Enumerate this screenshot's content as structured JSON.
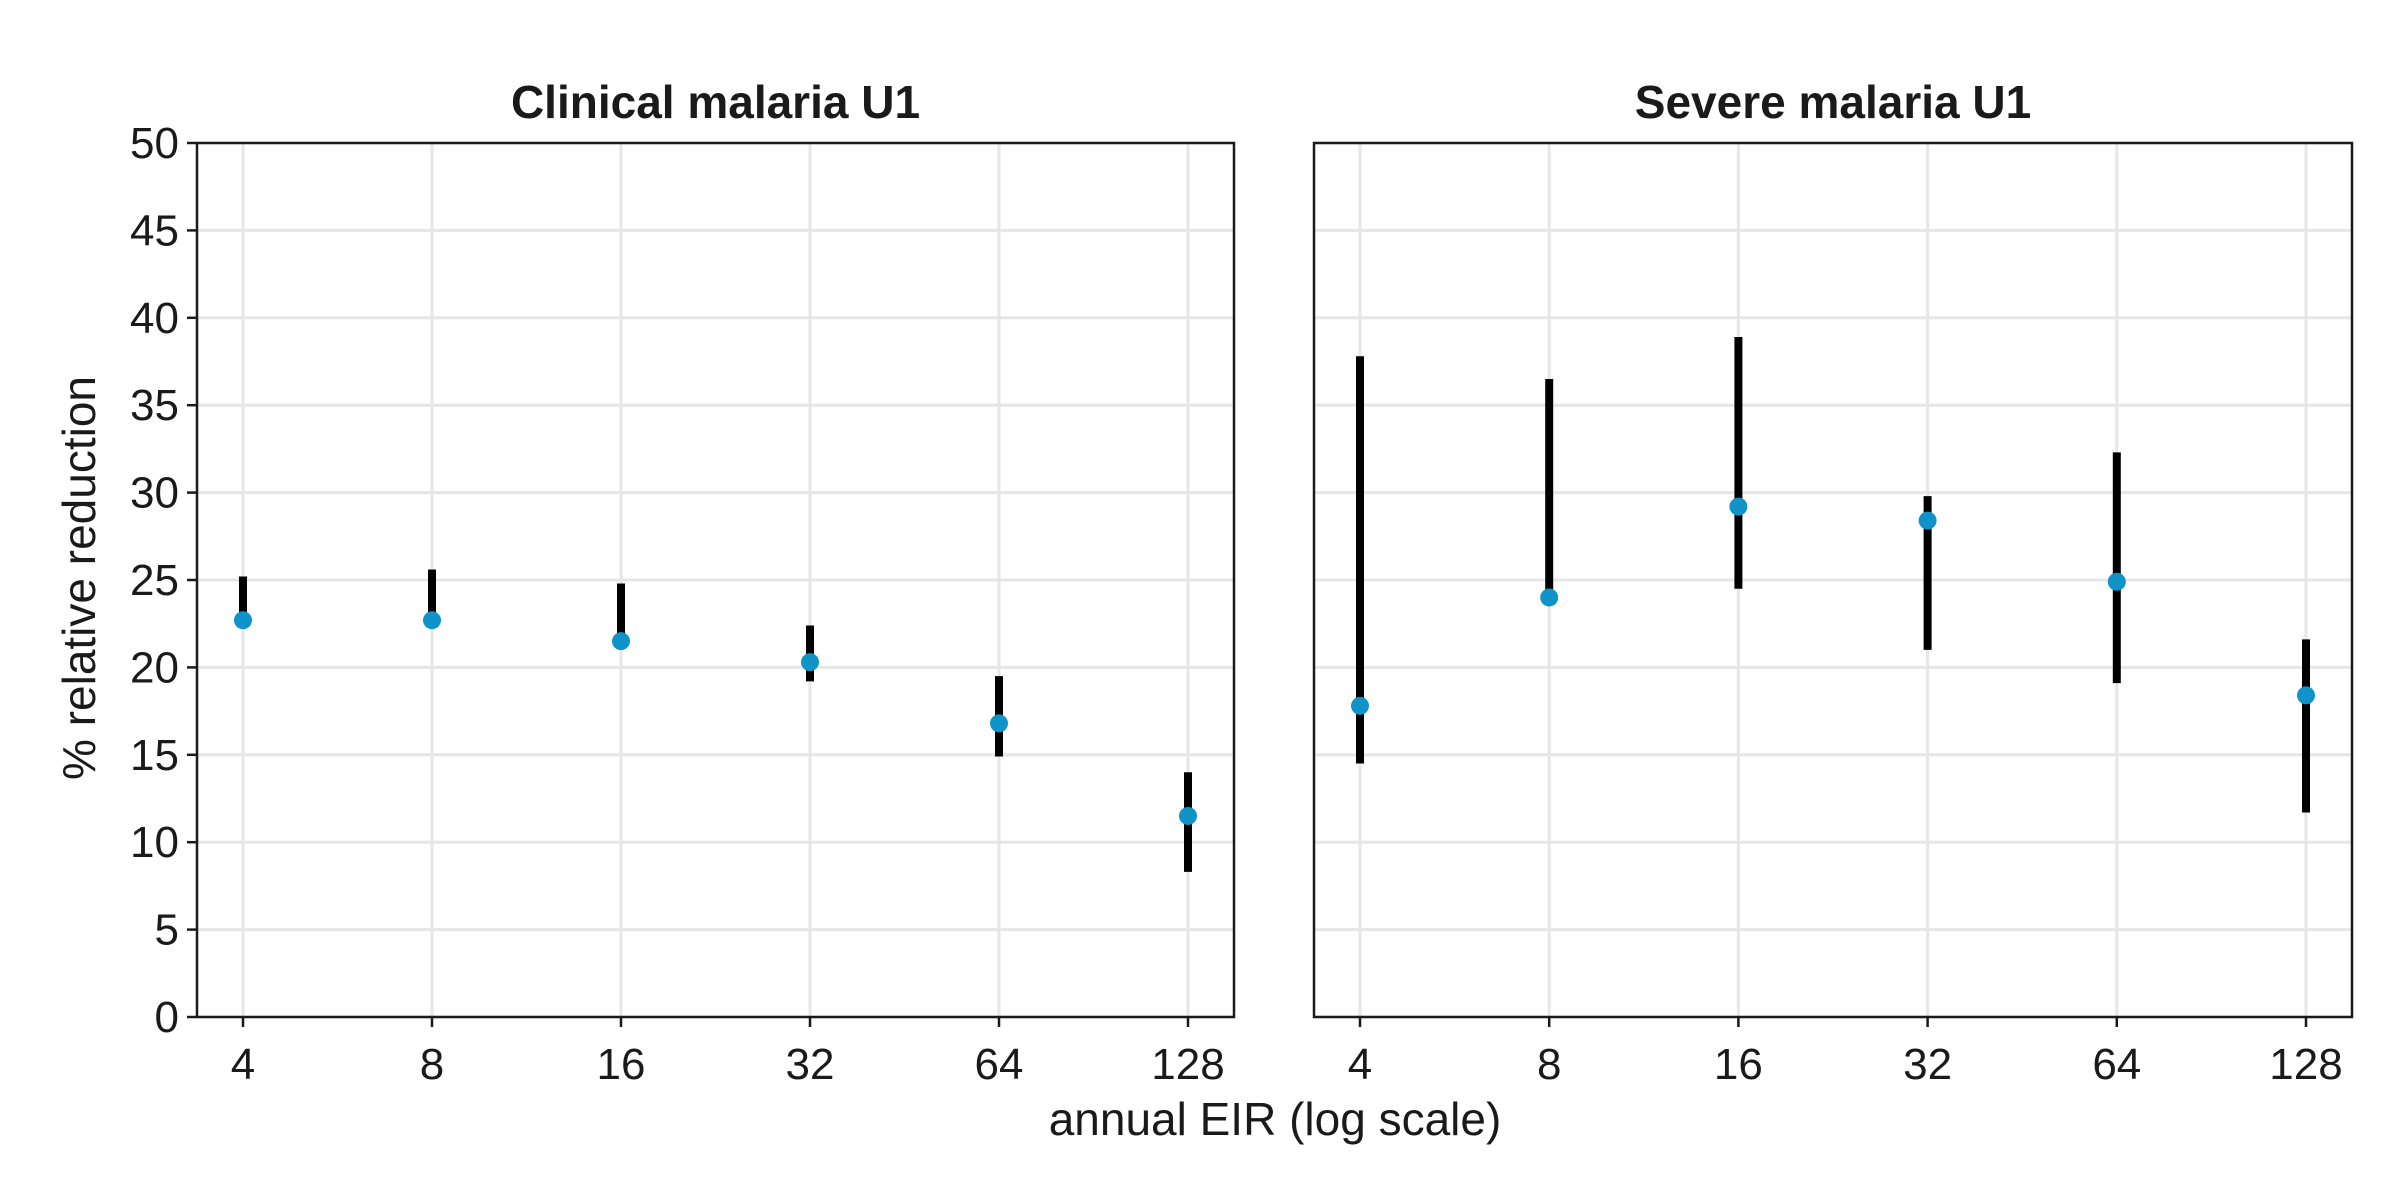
{
  "chart_data": {
    "type": "scatter",
    "xlabel": "annual EIR (log scale)",
    "ylabel": "% relative reduction",
    "x_scale": "log2",
    "x_ticks": [
      4,
      8,
      16,
      32,
      64,
      128
    ],
    "ylim": [
      0,
      50
    ],
    "y_ticks": [
      0,
      5,
      10,
      15,
      20,
      25,
      30,
      35,
      40,
      45,
      50
    ],
    "grid": true,
    "point_color": "#0f93c9",
    "errorbar_color": "#000000",
    "panels": [
      {
        "title": "Clinical malaria U1",
        "points": [
          {
            "x": 4,
            "y": 22.7,
            "lower": 22.8,
            "upper": 25.2
          },
          {
            "x": 8,
            "y": 22.7,
            "lower": 22.8,
            "upper": 25.6
          },
          {
            "x": 16,
            "y": 21.5,
            "lower": 21.6,
            "upper": 24.8
          },
          {
            "x": 32,
            "y": 20.3,
            "lower": 19.2,
            "upper": 22.4
          },
          {
            "x": 64,
            "y": 16.8,
            "lower": 14.9,
            "upper": 19.5
          },
          {
            "x": 128,
            "y": 11.5,
            "lower": 8.3,
            "upper": 14.0
          }
        ]
      },
      {
        "title": "Severe malaria U1",
        "points": [
          {
            "x": 4,
            "y": 17.8,
            "lower": 14.5,
            "upper": 37.8
          },
          {
            "x": 8,
            "y": 24.0,
            "lower": 24.0,
            "upper": 36.5
          },
          {
            "x": 16,
            "y": 29.2,
            "lower": 24.5,
            "upper": 38.9
          },
          {
            "x": 32,
            "y": 28.4,
            "lower": 21.0,
            "upper": 29.8
          },
          {
            "x": 64,
            "y": 24.9,
            "lower": 19.1,
            "upper": 32.3
          },
          {
            "x": 128,
            "y": 18.4,
            "lower": 11.7,
            "upper": 21.6
          }
        ]
      }
    ]
  }
}
